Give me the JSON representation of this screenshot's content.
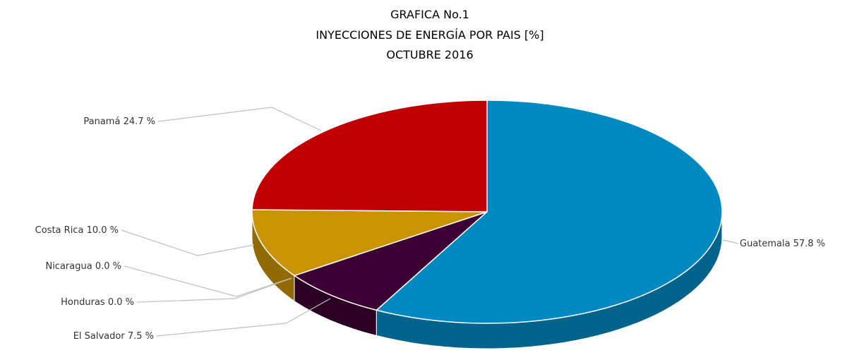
{
  "chart_data": {
    "type": "pie3d",
    "title": "GRAFICA No.1",
    "subtitle": "INYECCIONES DE ENERGÍA POR PAIS [%]",
    "period": "OCTUBRE 2016",
    "categories": [
      "Guatemala",
      "El Salvador",
      "Honduras",
      "Nicaragua",
      "Costa Rica",
      "Panamá"
    ],
    "values": [
      57.8,
      7.5,
      0.0,
      0.0,
      10.0,
      24.7
    ],
    "value_labels": [
      "57.8 %",
      "7.5 %",
      "0.0 %",
      "0.0 %",
      "10.0 %",
      "24.7 %"
    ],
    "colors": [
      "#0089c1",
      "#3d0033",
      "#5b9bd5",
      "#70ad47",
      "#c99400",
      "#c00000"
    ]
  }
}
